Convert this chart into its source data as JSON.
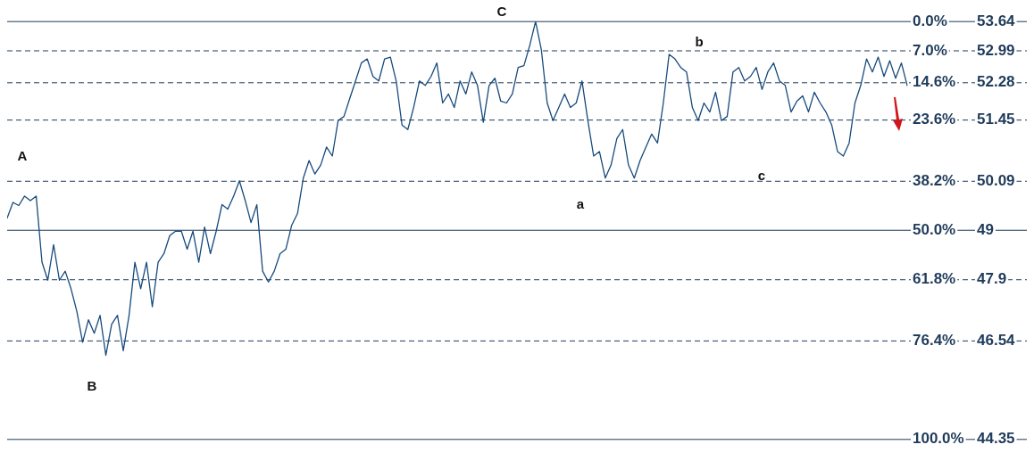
{
  "chart_data": {
    "type": "line",
    "tick_labels": "y",
    "legend": false,
    "marker": "none",
    "line_style": "solid",
    "categories": [
      null,
      null,
      null,
      null,
      null,
      null,
      null,
      null,
      null,
      null,
      null,
      null,
      null,
      null,
      null,
      null,
      null,
      null,
      null,
      null,
      null,
      null,
      null,
      null,
      null,
      null,
      null,
      null,
      null,
      null,
      null,
      null,
      null,
      null,
      null,
      null,
      null,
      null,
      null,
      null,
      null,
      null,
      null,
      null,
      null,
      null,
      null,
      null,
      null,
      null,
      null,
      null,
      null,
      null,
      null,
      null,
      null,
      null,
      null,
      null,
      null,
      null,
      null,
      null,
      null,
      null,
      null,
      null,
      null,
      null,
      null,
      null,
      null,
      null,
      null,
      null,
      null,
      null,
      null,
      null,
      null,
      null,
      null,
      null,
      null,
      null,
      null,
      null,
      null,
      null,
      null,
      null,
      null,
      null,
      null,
      null,
      null,
      null,
      null,
      null,
      null,
      null,
      null,
      null,
      null,
      null,
      null,
      null,
      null,
      null,
      null,
      null,
      null,
      null,
      null,
      null,
      null,
      null,
      null,
      null,
      null,
      null,
      null,
      null,
      null,
      null,
      null,
      null,
      null,
      null,
      null,
      null,
      null,
      null,
      null,
      null,
      null,
      null,
      null,
      null,
      null,
      null,
      null,
      null,
      null,
      null,
      null,
      null,
      null,
      null,
      null,
      null,
      null,
      null,
      null,
      null
    ],
    "ylim": [
      44.35,
      53.64
    ],
    "yticks": [
      53.64,
      52.99,
      52.28,
      51.45,
      50.09,
      49,
      47.9,
      46.54,
      44.35
    ],
    "y2lim": [
      100,
      0
    ],
    "y2ticks": [
      {
        "value": 0,
        "label": "0.0%"
      },
      {
        "value": 7,
        "label": "7.0%"
      },
      {
        "value": 14.6,
        "label": "14.6%"
      },
      {
        "value": 23.6,
        "label": "23.6%"
      },
      {
        "value": 38.2,
        "label": "38.2%"
      },
      {
        "value": 50,
        "label": "50.0%"
      },
      {
        "value": 61.8,
        "label": "61.8%"
      },
      {
        "value": 76.4,
        "label": "76.4%"
      },
      {
        "value": 100,
        "label": "100.0%"
      }
    ],
    "series": [
      {
        "color": "#174a7c",
        "values": [
          49.27,
          49.62,
          49.55,
          49.76,
          49.66,
          49.76,
          48.29,
          47.89,
          48.68,
          47.89,
          48.09,
          47.7,
          47.2,
          46.51,
          47.01,
          46.71,
          47.11,
          46.22,
          46.91,
          47.11,
          46.32,
          47.11,
          48.29,
          47.7,
          48.29,
          47.3,
          48.29,
          48.48,
          48.88,
          48.98,
          48.98,
          48.58,
          48.98,
          48.29,
          49.07,
          48.48,
          48.98,
          49.57,
          49.47,
          49.76,
          50.1,
          49.66,
          49.17,
          49.57,
          48.09,
          47.85,
          48.09,
          48.48,
          48.58,
          49.11,
          49.37,
          50.16,
          50.55,
          50.25,
          50.45,
          50.85,
          50.65,
          51.44,
          51.53,
          51.93,
          52.32,
          52.72,
          52.81,
          52.42,
          52.32,
          52.81,
          52.85,
          52.32,
          51.34,
          51.24,
          51.73,
          52.32,
          52.22,
          52.42,
          52.72,
          51.83,
          52.03,
          51.73,
          52.32,
          52.03,
          52.52,
          52.22,
          51.4,
          52.22,
          52.38,
          51.87,
          51.83,
          52.03,
          52.62,
          52.66,
          53.11,
          53.64,
          53.01,
          51.83,
          51.44,
          51.73,
          52.03,
          51.73,
          51.83,
          52.32,
          51.44,
          50.65,
          50.75,
          50.16,
          50.45,
          51.04,
          51.24,
          50.45,
          50.16,
          50.55,
          50.85,
          51.14,
          50.94,
          51.83,
          52.91,
          52.81,
          52.62,
          52.52,
          51.73,
          51.44,
          51.83,
          51.63,
          52.07,
          51.44,
          51.53,
          52.52,
          52.62,
          52.32,
          52.42,
          52.62,
          52.13,
          52.52,
          52.72,
          52.32,
          52.22,
          51.63,
          51.87,
          51.99,
          51.63,
          52.07,
          51.83,
          51.63,
          51.34,
          50.75,
          50.65,
          50.94,
          51.83,
          52.22,
          52.81,
          52.52,
          52.85,
          52.42,
          52.77,
          52.38,
          52.72,
          52.22
        ]
      }
    ],
    "ref_lines": [
      {
        "axis": "y",
        "value": 53.64,
        "line_style": "solid",
        "color": "#1f3b5a"
      },
      {
        "axis": "y",
        "value": 52.99,
        "line_style": "dashed",
        "color": "#1f3b5a"
      },
      {
        "axis": "y",
        "value": 52.28,
        "line_style": "dashed",
        "color": "#1f3b5a"
      },
      {
        "axis": "y",
        "value": 51.45,
        "line_style": "dashed",
        "color": "#1f3b5a"
      },
      {
        "axis": "y",
        "value": 50.09,
        "line_style": "dashed",
        "color": "#1f3b5a"
      },
      {
        "axis": "y",
        "value": 49,
        "line_style": "solid",
        "color": "#1f3b5a"
      },
      {
        "axis": "y",
        "value": 47.9,
        "line_style": "dashed",
        "color": "#1f3b5a"
      },
      {
        "axis": "y",
        "value": 46.54,
        "line_style": "dashed",
        "color": "#1f3b5a"
      },
      {
        "axis": "y",
        "value": 44.35,
        "line_style": "solid",
        "color": "#1f3b5a"
      }
    ],
    "annotations": [
      "A",
      "B",
      "C",
      "a",
      "b",
      "c"
    ]
  }
}
